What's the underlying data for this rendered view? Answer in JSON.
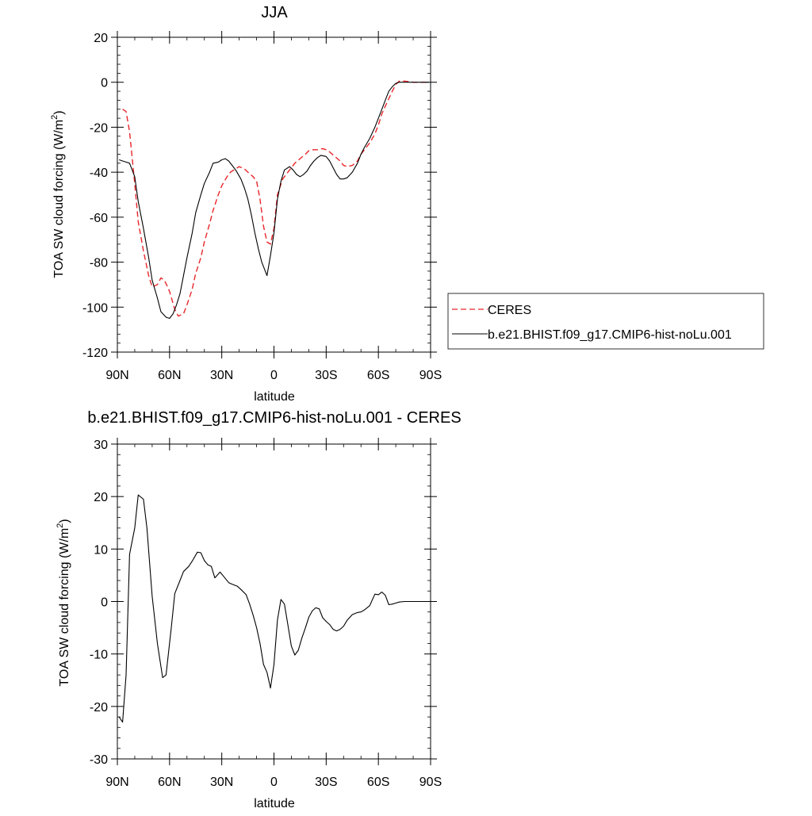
{
  "colors": {
    "ceres": "#e8262a",
    "model": "#000000"
  },
  "chart_data": [
    {
      "type": "line",
      "title": "JJA",
      "xlabel": "latitude",
      "ylabel": "TOA SW cloud forcing (W/m",
      "ylabel_sup": "2",
      "ylabel_end": ")",
      "xlim": [
        90,
        -90
      ],
      "ylim": [
        -120,
        20
      ],
      "xticks": [
        {
          "value": 90,
          "label": "90N"
        },
        {
          "value": 60,
          "label": "60N"
        },
        {
          "value": 30,
          "label": "30N"
        },
        {
          "value": 0,
          "label": "0"
        },
        {
          "value": -30,
          "label": "30S"
        },
        {
          "value": -60,
          "label": "60S"
        },
        {
          "value": -90,
          "label": "90S"
        }
      ],
      "yticks": [
        {
          "value": 20,
          "label": "20"
        },
        {
          "value": 0,
          "label": "0"
        },
        {
          "value": -20,
          "label": "-20"
        },
        {
          "value": -40,
          "label": "-40"
        },
        {
          "value": -60,
          "label": "-60"
        },
        {
          "value": -80,
          "label": "-80"
        },
        {
          "value": -100,
          "label": "-100"
        },
        {
          "value": -120,
          "label": "-120"
        }
      ],
      "legend": {
        "placement": "right"
      },
      "series": [
        {
          "name": "CERES",
          "style": "dashed",
          "x": [
            87,
            85,
            83,
            80,
            78,
            75,
            72,
            70,
            67,
            65,
            63,
            60,
            57,
            55,
            52,
            50,
            47,
            45,
            42,
            40,
            37,
            35,
            32,
            30,
            27,
            25,
            22,
            20,
            17,
            15,
            12,
            10,
            8,
            6,
            4,
            2,
            0,
            -2,
            -5,
            -8,
            -10,
            -12,
            -15,
            -18,
            -20,
            -22,
            -25,
            -28,
            -30,
            -32,
            -35,
            -38,
            -40,
            -42,
            -45,
            -48,
            -50,
            -52,
            -55,
            -58,
            -60,
            -62,
            -65,
            -68,
            -70,
            -72,
            -75,
            -78,
            -80,
            -82,
            -85,
            -88,
            -89
          ],
          "y": [
            -12,
            -13,
            -22,
            -45,
            -62,
            -75,
            -86,
            -91,
            -90,
            -87,
            -88,
            -93,
            -101,
            -104,
            -103,
            -99,
            -92,
            -85,
            -78,
            -71,
            -63,
            -57,
            -50,
            -46,
            -42,
            -40,
            -38.5,
            -37.5,
            -38.5,
            -40,
            -42,
            -44,
            -52,
            -64,
            -71,
            -72,
            -65,
            -50,
            -43,
            -40,
            -38,
            -36,
            -34,
            -32,
            -30.5,
            -30,
            -30,
            -29.5,
            -30,
            -31,
            -33,
            -35,
            -37,
            -37.5,
            -37,
            -35,
            -32,
            -30,
            -27,
            -23,
            -19,
            -14,
            -9,
            -4,
            -1,
            0.5,
            0.5,
            0.2,
            0,
            0,
            0,
            0,
            0
          ]
        },
        {
          "name": "b.e21.BHIST.f09_g17.CMIP6-hist-noLu.001",
          "style": "solid",
          "x": [
            89,
            87,
            85,
            83,
            80,
            78,
            75,
            72,
            70,
            67,
            65,
            62,
            60,
            58,
            56,
            54,
            52,
            50,
            47,
            45,
            42,
            40,
            37,
            35,
            32,
            30,
            28,
            26,
            24,
            22,
            19,
            17,
            15,
            13,
            11,
            9,
            7,
            6,
            4,
            2,
            0,
            -2,
            -4,
            -6,
            -9,
            -11,
            -13,
            -15,
            -17,
            -19,
            -21,
            -23,
            -25,
            -27,
            -30,
            -32,
            -34,
            -36,
            -38,
            -40,
            -42,
            -45,
            -48,
            -50,
            -52,
            -55,
            -58,
            -60,
            -62,
            -64,
            -66,
            -68,
            -70,
            -72,
            -75,
            -78,
            -80,
            -82,
            -85,
            -88,
            -89
          ],
          "y": [
            -34.5,
            -35,
            -35.5,
            -36,
            -42,
            -53,
            -65,
            -78,
            -88,
            -96,
            -102,
            -104.5,
            -105,
            -103,
            -99,
            -94,
            -86,
            -78,
            -67,
            -58,
            -50,
            -45,
            -40,
            -36,
            -35.5,
            -34.5,
            -34,
            -35,
            -37,
            -39,
            -43,
            -47,
            -52,
            -59,
            -67,
            -74,
            -80,
            -82,
            -86,
            -77,
            -67,
            -52,
            -44,
            -39,
            -37.5,
            -39,
            -41,
            -42,
            -41,
            -39.5,
            -37,
            -35,
            -33.5,
            -32.5,
            -33,
            -35,
            -38,
            -41,
            -43,
            -43,
            -42.5,
            -40,
            -36,
            -32,
            -29,
            -25,
            -20,
            -16,
            -12,
            -8,
            -4,
            -2,
            -0.5,
            0,
            0,
            0,
            0,
            0,
            0,
            0,
            0
          ]
        }
      ]
    },
    {
      "type": "line",
      "title": "b.e21.BHIST.f09_g17.CMIP6-hist-noLu.001 - CERES",
      "xlabel": "latitude",
      "ylabel": "TOA SW cloud forcing (W/m",
      "ylabel_sup": "2",
      "ylabel_end": ")",
      "xlim": [
        90,
        -90
      ],
      "ylim": [
        -30,
        30
      ],
      "xticks": [
        {
          "value": 90,
          "label": "90N"
        },
        {
          "value": 60,
          "label": "60N"
        },
        {
          "value": 30,
          "label": "30N"
        },
        {
          "value": 0,
          "label": "0"
        },
        {
          "value": -30,
          "label": "30S"
        },
        {
          "value": -60,
          "label": "60S"
        },
        {
          "value": -90,
          "label": "90S"
        }
      ],
      "yticks": [
        {
          "value": 30,
          "label": "30"
        },
        {
          "value": 20,
          "label": "20"
        },
        {
          "value": 10,
          "label": "10"
        },
        {
          "value": 0,
          "label": "0"
        },
        {
          "value": -10,
          "label": "-10"
        },
        {
          "value": -20,
          "label": "-20"
        },
        {
          "value": -30,
          "label": "-30"
        }
      ],
      "series": [
        {
          "style": "solid",
          "x": [
            89,
            87,
            85,
            83,
            80,
            78,
            75,
            73,
            70,
            67,
            64,
            62,
            59,
            57,
            54,
            52,
            49,
            47,
            44,
            42,
            40,
            38,
            36,
            34,
            31,
            29,
            26,
            24,
            21,
            19,
            16,
            14,
            12,
            10,
            8,
            6,
            4,
            2,
            0,
            -2,
            -4,
            -6,
            -8,
            -10,
            -12,
            -14,
            -16,
            -18,
            -20,
            -22,
            -24,
            -26,
            -28,
            -30,
            -32,
            -34,
            -36,
            -38,
            -40,
            -42,
            -45,
            -48,
            -50,
            -52,
            -55,
            -58,
            -60,
            -62,
            -64,
            -66,
            -68,
            -70,
            -72,
            -75,
            -78,
            -80,
            -82,
            -85,
            -88,
            -90
          ],
          "y": [
            -22,
            -23,
            -14,
            9,
            14,
            20.3,
            19.5,
            14,
            1,
            -8,
            -14.5,
            -14,
            -5,
            1.5,
            4,
            5.7,
            6.7,
            7.7,
            9.4,
            9.3,
            7.8,
            7,
            6.7,
            4.5,
            5.6,
            4.8,
            3.6,
            3.3,
            2.9,
            2.3,
            1.3,
            -0.5,
            -2.6,
            -5,
            -8,
            -12,
            -13.5,
            -16.5,
            -12,
            -3.5,
            0.4,
            -0.5,
            -4.5,
            -8.5,
            -10.2,
            -9.3,
            -7,
            -5.1,
            -3,
            -1.8,
            -1.2,
            -1.4,
            -3.1,
            -3.8,
            -4.4,
            -5.3,
            -5.6,
            -5.3,
            -4.7,
            -3.6,
            -2.5,
            -2.1,
            -2,
            -1.6,
            -0.8,
            1.4,
            1.3,
            1.8,
            1.2,
            -0.6,
            -0.5,
            -0.3,
            -0.1,
            0,
            0,
            0,
            0,
            0,
            0,
            0
          ]
        }
      ]
    }
  ]
}
